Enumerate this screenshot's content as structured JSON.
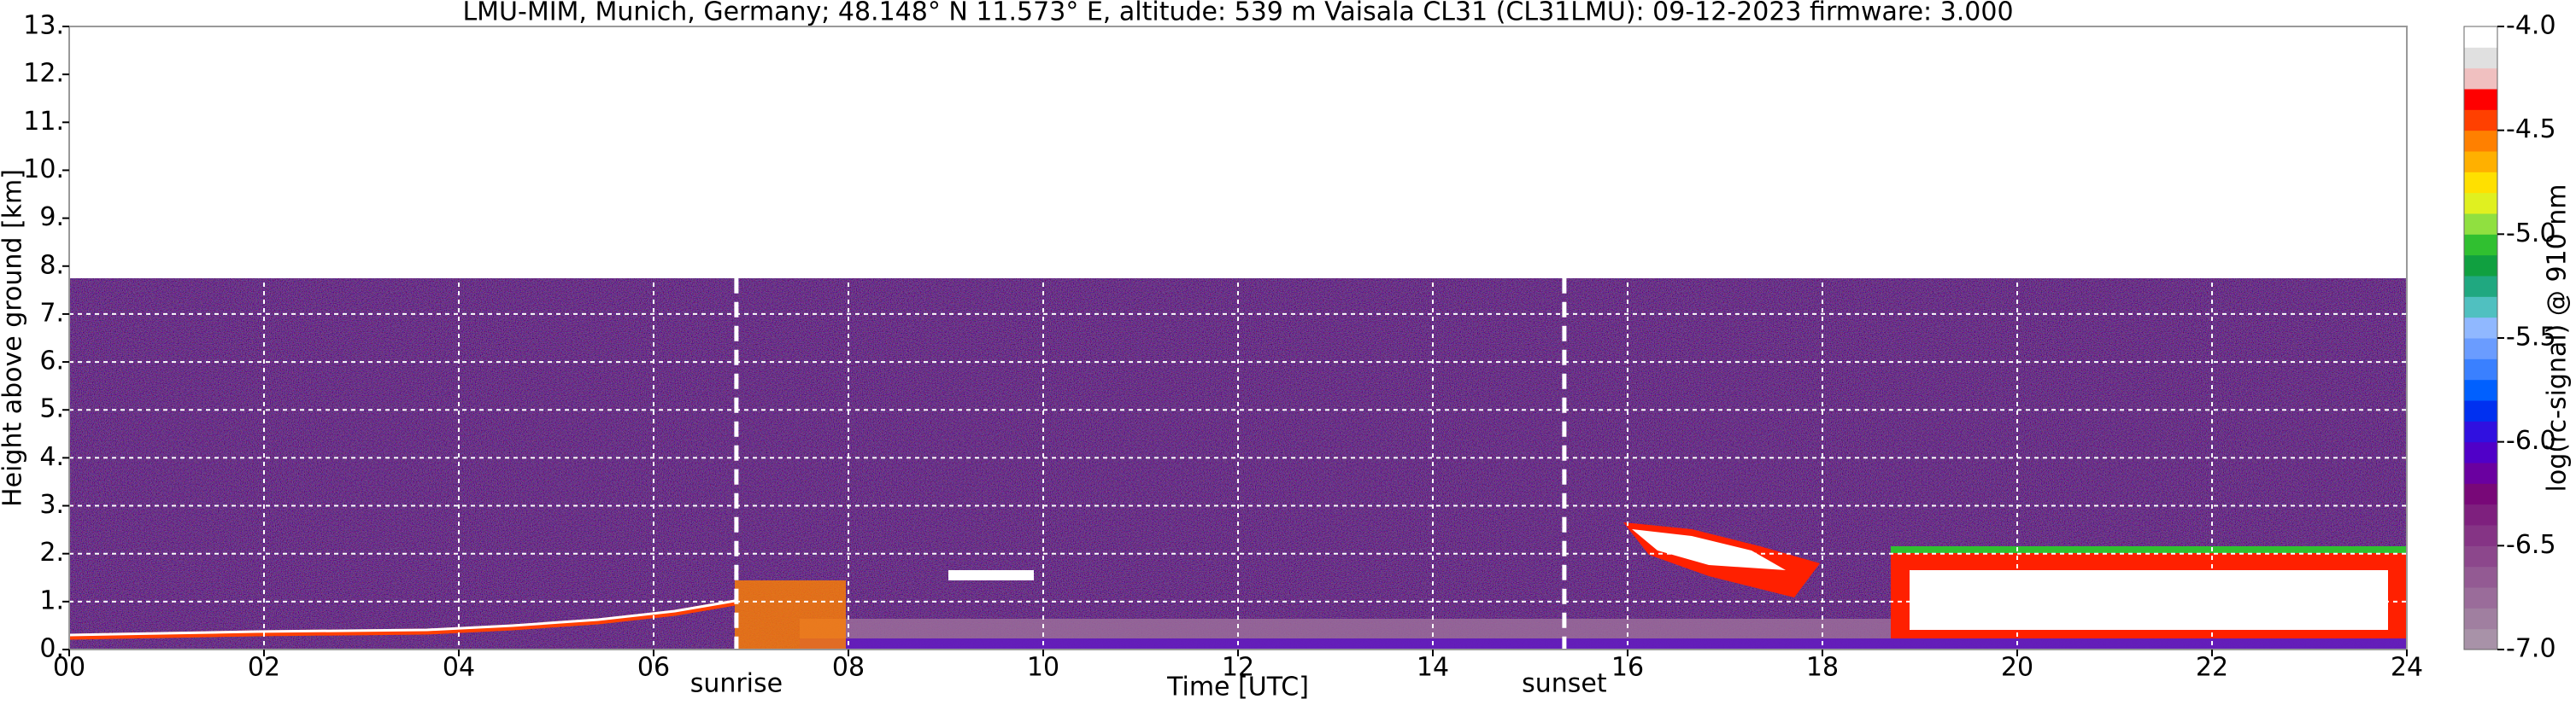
{
  "chart_data": {
    "type": "heatmap",
    "title": "LMU-MIM, Munich, Germany; 48.148° N 11.573° E, altitude: 539 m    Vaisala CL31 (CL31LMU): 09-12-2023    firmware: 3.000",
    "x_label": "Time [UTC]",
    "y_label": "Height above ground [km]",
    "xlim": [
      0,
      24
    ],
    "xticks": [
      {
        "value": 0,
        "label": "00"
      },
      {
        "value": 2,
        "label": "02"
      },
      {
        "value": 4,
        "label": "04"
      },
      {
        "value": 6,
        "label": "06"
      },
      {
        "value": 8,
        "label": "08"
      },
      {
        "value": 10,
        "label": "10"
      },
      {
        "value": 12,
        "label": "12"
      },
      {
        "value": 14,
        "label": "14"
      },
      {
        "value": 16,
        "label": "16"
      },
      {
        "value": 18,
        "label": "18"
      },
      {
        "value": 20,
        "label": "20"
      },
      {
        "value": 22,
        "label": "22"
      },
      {
        "value": 24,
        "label": "24"
      }
    ],
    "ylim": [
      0,
      13
    ],
    "yticks": [
      {
        "value": 0,
        "label": "0."
      },
      {
        "value": 1,
        "label": "1."
      },
      {
        "value": 2,
        "label": "2."
      },
      {
        "value": 3,
        "label": "3."
      },
      {
        "value": 4,
        "label": "4."
      },
      {
        "value": 5,
        "label": "5."
      },
      {
        "value": 6,
        "label": "6."
      },
      {
        "value": 7,
        "label": "7."
      },
      {
        "value": 8,
        "label": "8."
      },
      {
        "value": 9,
        "label": "9."
      },
      {
        "value": 10,
        "label": "10."
      },
      {
        "value": 11,
        "label": "11."
      },
      {
        "value": 12,
        "label": "12."
      },
      {
        "value": 13,
        "label": "13."
      }
    ],
    "grid": true,
    "annotations": [
      {
        "text": "sunrise",
        "x": 6.85
      },
      {
        "text": "sunset",
        "x": 15.35
      }
    ],
    "colorbar": {
      "label": "log(rc-signal) @ 910 nm",
      "lim": [
        -7,
        -4
      ],
      "ticks": [
        {
          "value": -4,
          "label": "-4.0"
        },
        {
          "value": -4.5,
          "label": "-4.5"
        },
        {
          "value": -5,
          "label": "-5.0"
        },
        {
          "value": -5.5,
          "label": "-5.5"
        },
        {
          "value": -6,
          "label": "-6.0"
        },
        {
          "value": -6.5,
          "label": "-6.5"
        },
        {
          "value": -7,
          "label": "-7.0"
        }
      ],
      "colors": [
        "#a892a8",
        "#a07fa0",
        "#9a6c9a",
        "#935a93",
        "#8c478c",
        "#853485",
        "#7e207e",
        "#780878",
        "#6a00a0",
        "#5000c8",
        "#3010e0",
        "#0030f0",
        "#0060ff",
        "#3a80ff",
        "#6a9cff",
        "#90b8ff",
        "#50c0c0",
        "#20a880",
        "#10a040",
        "#30c030",
        "#90e040",
        "#e0f020",
        "#ffe000",
        "#ffb000",
        "#ff8000",
        "#ff4000",
        "#ff0000",
        "#f0c0c0",
        "#e0e0e0",
        "#ffffff"
      ]
    }
  }
}
